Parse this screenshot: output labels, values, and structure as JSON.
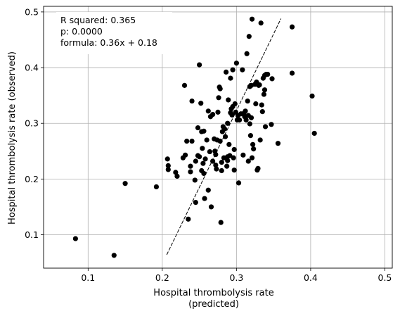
{
  "chart_data": {
    "type": "scatter",
    "xlabel_line1": "Hospital thrombolysis rate",
    "xlabel_line2": "(predicted)",
    "ylabel": "Hospital thrombolysis rate (observed)",
    "xlim": [
      0.04,
      0.51
    ],
    "ylim": [
      0.04,
      0.51
    ],
    "xticks": [
      0.1,
      0.2,
      0.3,
      0.4,
      0.5
    ],
    "yticks": [
      0.1,
      0.2,
      0.3,
      0.4,
      0.5
    ],
    "xtick_labels": [
      "0.1",
      "0.2",
      "0.3",
      "0.4",
      "0.5"
    ],
    "ytick_labels": [
      "0.1",
      "0.2",
      "0.3",
      "0.4",
      "0.5"
    ],
    "grid": true,
    "annotation": {
      "line1": "R squared: 0.365",
      "line2": "p: 0.0000",
      "line3": "formula: 0.36x + 0.18",
      "placement": "top-left"
    },
    "fit_line": {
      "x": [
        0.206,
        0.36
      ],
      "y": [
        0.064,
        0.488
      ],
      "style": "dashed"
    },
    "point_color": "#000000",
    "points": [
      [
        0.083,
        0.093
      ],
      [
        0.135,
        0.063
      ],
      [
        0.15,
        0.192
      ],
      [
        0.192,
        0.186
      ],
      [
        0.207,
        0.236
      ],
      [
        0.208,
        0.224
      ],
      [
        0.208,
        0.217
      ],
      [
        0.218,
        0.212
      ],
      [
        0.22,
        0.205
      ],
      [
        0.228,
        0.238
      ],
      [
        0.23,
        0.368
      ],
      [
        0.231,
        0.243
      ],
      [
        0.233,
        0.268
      ],
      [
        0.235,
        0.128
      ],
      [
        0.238,
        0.223
      ],
      [
        0.238,
        0.213
      ],
      [
        0.24,
        0.268
      ],
      [
        0.24,
        0.34
      ],
      [
        0.244,
        0.198
      ],
      [
        0.245,
        0.158
      ],
      [
        0.245,
        0.232
      ],
      [
        0.248,
        0.292
      ],
      [
        0.248,
        0.242
      ],
      [
        0.25,
        0.405
      ],
      [
        0.25,
        0.24
      ],
      [
        0.252,
        0.336
      ],
      [
        0.253,
        0.215
      ],
      [
        0.253,
        0.285
      ],
      [
        0.254,
        0.255
      ],
      [
        0.255,
        0.228
      ],
      [
        0.256,
        0.286
      ],
      [
        0.256,
        0.21
      ],
      [
        0.257,
        0.165
      ],
      [
        0.258,
        0.236
      ],
      [
        0.26,
        0.27
      ],
      [
        0.262,
        0.322
      ],
      [
        0.262,
        0.18
      ],
      [
        0.264,
        0.249
      ],
      [
        0.265,
        0.312
      ],
      [
        0.266,
        0.15
      ],
      [
        0.268,
        0.232
      ],
      [
        0.268,
        0.316
      ],
      [
        0.27,
        0.272
      ],
      [
        0.271,
        0.25
      ],
      [
        0.272,
        0.244
      ],
      [
        0.272,
        0.225
      ],
      [
        0.273,
        0.218
      ],
      [
        0.274,
        0.27
      ],
      [
        0.275,
        0.32
      ],
      [
        0.276,
        0.346
      ],
      [
        0.277,
        0.365
      ],
      [
        0.278,
        0.362
      ],
      [
        0.278,
        0.268
      ],
      [
        0.279,
        0.122
      ],
      [
        0.28,
        0.23
      ],
      [
        0.28,
        0.215
      ],
      [
        0.281,
        0.285
      ],
      [
        0.282,
        0.294
      ],
      [
        0.283,
        0.238
      ],
      [
        0.284,
        0.29
      ],
      [
        0.285,
        0.276
      ],
      [
        0.286,
        0.392
      ],
      [
        0.287,
        0.223
      ],
      [
        0.288,
        0.24
      ],
      [
        0.288,
        0.233
      ],
      [
        0.288,
        0.3
      ],
      [
        0.289,
        0.342
      ],
      [
        0.29,
        0.262
      ],
      [
        0.291,
        0.242
      ],
      [
        0.292,
        0.319
      ],
      [
        0.292,
        0.381
      ],
      [
        0.293,
        0.326
      ],
      [
        0.294,
        0.315
      ],
      [
        0.295,
        0.396
      ],
      [
        0.295,
        0.33
      ],
      [
        0.296,
        0.238
      ],
      [
        0.297,
        0.253
      ],
      [
        0.297,
        0.216
      ],
      [
        0.298,
        0.335
      ],
      [
        0.299,
        0.32
      ],
      [
        0.3,
        0.408
      ],
      [
        0.301,
        0.306
      ],
      [
        0.302,
        0.314
      ],
      [
        0.303,
        0.193
      ],
      [
        0.304,
        0.306
      ],
      [
        0.306,
        0.317
      ],
      [
        0.308,
        0.396
      ],
      [
        0.309,
        0.243
      ],
      [
        0.31,
        0.318
      ],
      [
        0.311,
        0.312
      ],
      [
        0.312,
        0.322
      ],
      [
        0.313,
        0.306
      ],
      [
        0.314,
        0.425
      ],
      [
        0.315,
        0.34
      ],
      [
        0.316,
        0.232
      ],
      [
        0.316,
        0.314
      ],
      [
        0.317,
        0.456
      ],
      [
        0.318,
        0.366
      ],
      [
        0.318,
        0.299
      ],
      [
        0.319,
        0.278
      ],
      [
        0.32,
        0.31
      ],
      [
        0.32,
        0.368
      ],
      [
        0.321,
        0.487
      ],
      [
        0.321,
        0.238
      ],
      [
        0.322,
        0.262
      ],
      [
        0.323,
        0.254
      ],
      [
        0.325,
        0.37
      ],
      [
        0.326,
        0.335
      ],
      [
        0.327,
        0.374
      ],
      [
        0.328,
        0.216
      ],
      [
        0.329,
        0.219
      ],
      [
        0.33,
        0.368
      ],
      [
        0.331,
        0.369
      ],
      [
        0.332,
        0.27
      ],
      [
        0.333,
        0.48
      ],
      [
        0.334,
        0.333
      ],
      [
        0.335,
        0.321
      ],
      [
        0.336,
        0.381
      ],
      [
        0.337,
        0.352
      ],
      [
        0.338,
        0.386
      ],
      [
        0.338,
        0.36
      ],
      [
        0.339,
        0.294
      ],
      [
        0.34,
        0.388
      ],
      [
        0.342,
        0.388
      ],
      [
        0.347,
        0.298
      ],
      [
        0.348,
        0.38
      ],
      [
        0.356,
        0.264
      ],
      [
        0.375,
        0.473
      ],
      [
        0.375,
        0.39
      ],
      [
        0.402,
        0.349
      ],
      [
        0.405,
        0.282
      ]
    ]
  }
}
